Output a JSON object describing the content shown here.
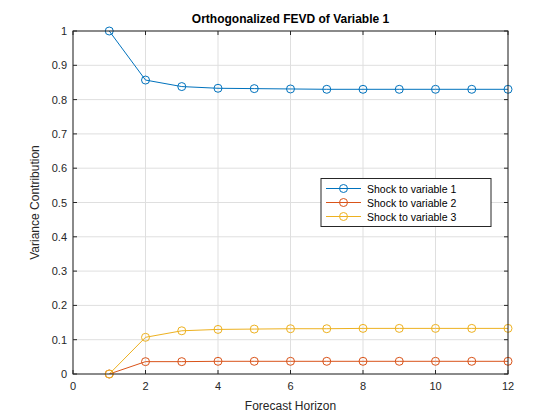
{
  "chart_data": {
    "type": "line",
    "title": "Orthogonalized FEVD of Variable 1",
    "x_label": "Forecast Horizon",
    "y_label": "Variance Contribution",
    "x": [
      1,
      2,
      3,
      4,
      5,
      6,
      7,
      8,
      9,
      10,
      11,
      12
    ],
    "series": [
      {
        "name": "Shock to variable 1",
        "color": "#0072bd",
        "marker": "circle",
        "values": [
          1,
          0.857,
          0.838,
          0.833,
          0.832,
          0.831,
          0.83,
          0.83,
          0.83,
          0.83,
          0.83,
          0.83
        ]
      },
      {
        "name": "Shock to variable 2",
        "color": "#d95319",
        "marker": "circle",
        "values": [
          0,
          0.036,
          0.036,
          0.037,
          0.037,
          0.037,
          0.037,
          0.037,
          0.037,
          0.037,
          0.037,
          0.037
        ]
      },
      {
        "name": "Shock to variable 3",
        "color": "#edb120",
        "marker": "circle",
        "values": [
          0,
          0.107,
          0.126,
          0.13,
          0.131,
          0.132,
          0.132,
          0.133,
          0.133,
          0.133,
          0.133,
          0.133
        ]
      }
    ],
    "xlim": [
      0,
      12
    ],
    "xticks": [
      0,
      2,
      4,
      6,
      8,
      10,
      12
    ],
    "ylim": [
      0,
      1
    ],
    "yticks": [
      0,
      0.1,
      0.2,
      0.3,
      0.4,
      0.5,
      0.6,
      0.7,
      0.8,
      0.9,
      1
    ],
    "grid": true,
    "legend": "east"
  }
}
